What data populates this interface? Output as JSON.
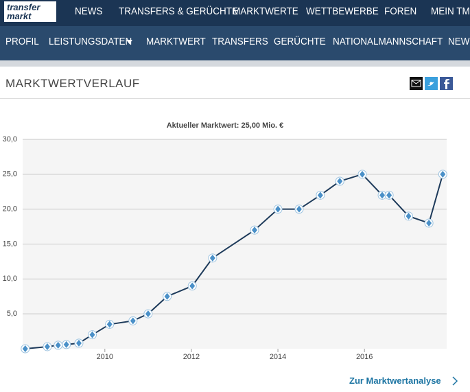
{
  "logo": {
    "line1": "transfer",
    "line2": "markt"
  },
  "main_nav": [
    "NEWS",
    "TRANSFERS & GERÜCHTE",
    "MARKTWERTE",
    "WETTBEWERBE",
    "FOREN",
    "MEIN TM"
  ],
  "sub_nav": [
    "PROFIL",
    "LEISTUNGSDATEN",
    "MARKTWERT",
    "TRANSFERS",
    "GERÜCHTE",
    "NATIONALMANNSCHAFT",
    "NEWS"
  ],
  "section_title": "MARKTWERTVERLAUF",
  "footer_link": "Zur Marktwertanalyse",
  "chart_data": {
    "type": "line",
    "title": "Aktueller Marktwert: 25,00 Mio. €",
    "x": [
      2008.16,
      2008.67,
      2008.92,
      2009.11,
      2009.4,
      2009.71,
      2010.11,
      2010.65,
      2011.0,
      2011.44,
      2012.02,
      2012.49,
      2013.46,
      2014.0,
      2014.49,
      2014.98,
      2015.43,
      2015.95,
      2016.41,
      2016.57,
      2017.02,
      2017.49,
      2017.81
    ],
    "values": [
      0,
      0.3,
      0.5,
      0.6,
      0.8,
      2,
      3.5,
      4,
      5,
      7.5,
      9,
      13,
      17,
      20,
      20,
      22,
      24,
      25,
      22,
      22,
      19,
      18,
      25
    ],
    "color": "#1d3a5a",
    "xlim": [
      2008.1,
      2017.9
    ],
    "xticks": [
      2010,
      2012,
      2014,
      2016
    ],
    "ylim": [
      0,
      30
    ],
    "yticks": [
      {
        "value": 5,
        "label": "5,0"
      },
      {
        "value": 10,
        "label": "10,0"
      },
      {
        "value": 15,
        "label": "15,0"
      },
      {
        "value": 20,
        "label": "20,0"
      },
      {
        "value": 25,
        "label": "25,0"
      },
      {
        "value": 30,
        "label": "30,0"
      }
    ],
    "grid": true
  }
}
